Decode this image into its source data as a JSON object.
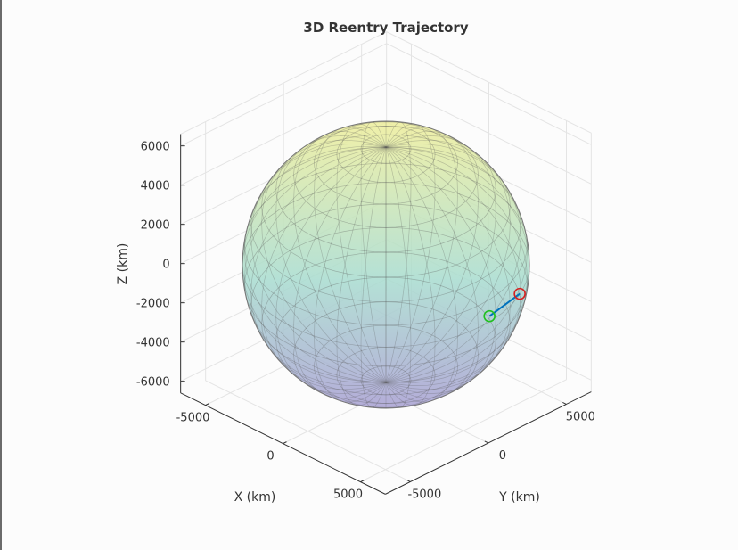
{
  "chart_data": {
    "type": "scatter3d",
    "title": "3D Reentry Trajectory",
    "xlabel": "X (km)",
    "ylabel": "Y (km)",
    "zlabel": "Z (km)",
    "xticks": [
      -5000,
      0,
      5000
    ],
    "yticks": [
      -5000,
      0,
      5000
    ],
    "zticks": [
      6000,
      4000,
      2000,
      0,
      -2000,
      -4000,
      -6000
    ],
    "xlim": [
      -6600,
      6600
    ],
    "ylim": [
      -6600,
      6600
    ],
    "zlim": [
      -6600,
      6600
    ],
    "grid": true,
    "earth_radius_km": 6378,
    "trajectory": {
      "x": [
        3500,
        2000
      ],
      "y": [
        5100,
        4650
      ],
      "z": [
        -2222,
        -3770
      ],
      "line_color": "#0072bd",
      "start_marker_color": "#d62020",
      "end_marker_color": "#20c020"
    },
    "sphere_colors": [
      "#eeee9a",
      "#a8dccf",
      "#a79fd2"
    ]
  }
}
